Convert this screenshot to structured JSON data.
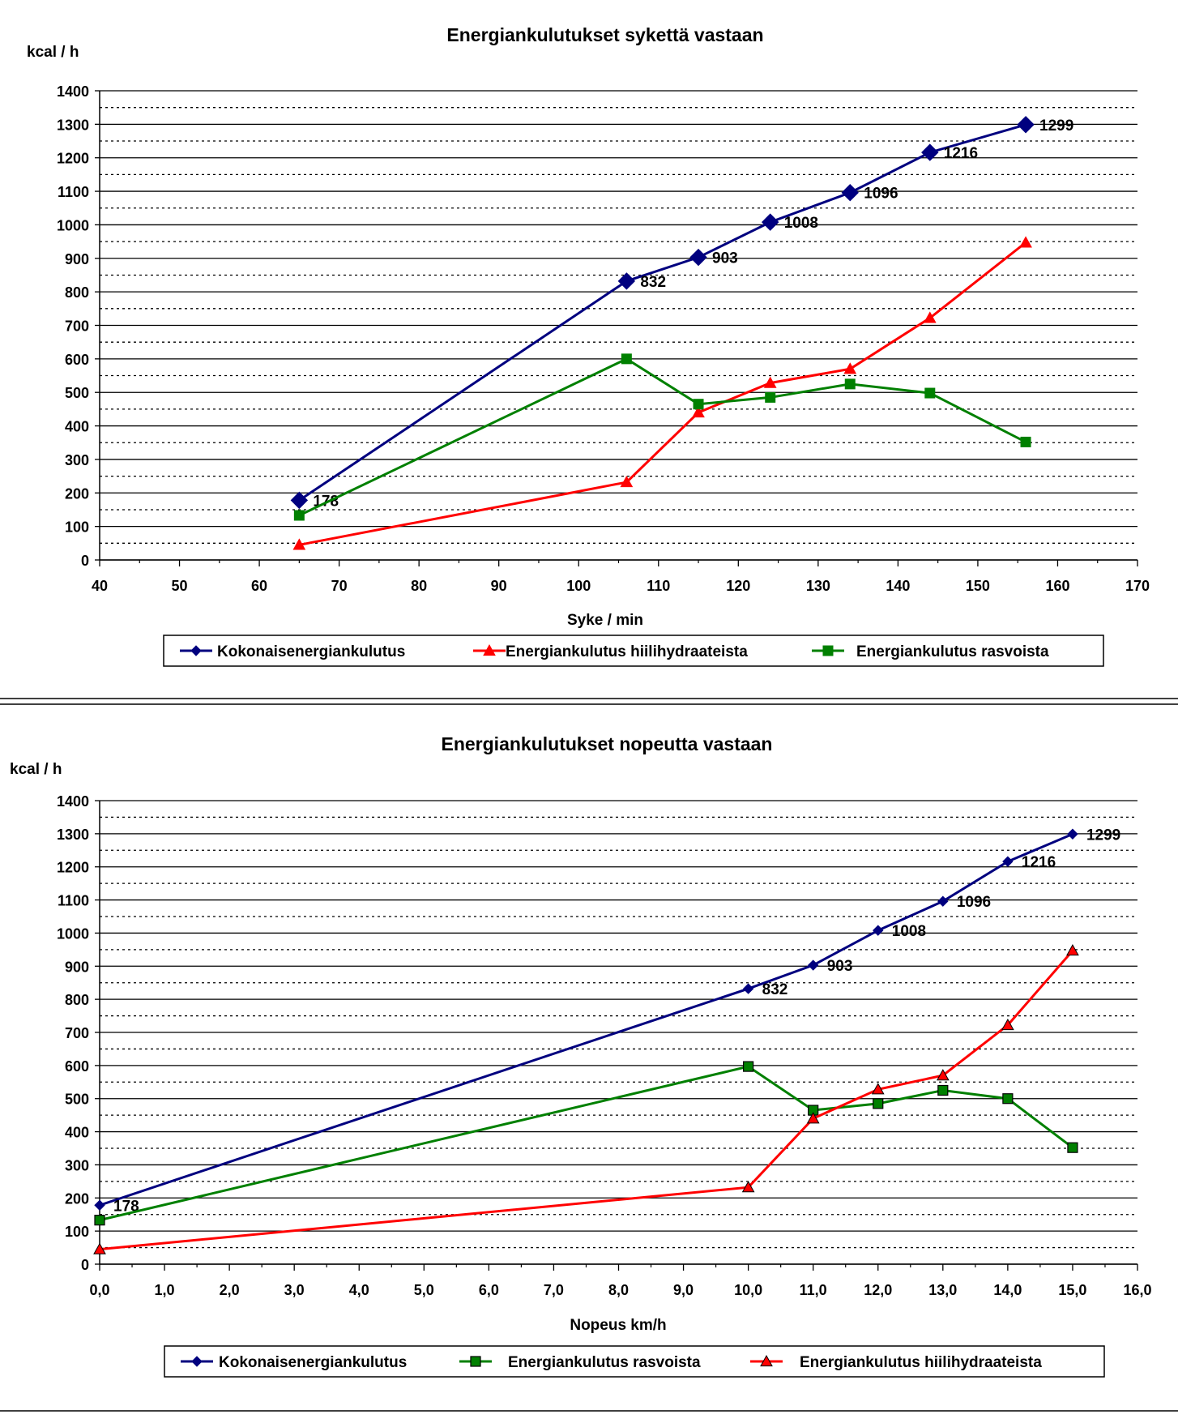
{
  "colors": {
    "total": "#00007f",
    "carb": "#ff0000",
    "fat": "#008000",
    "carb_marker_fill": "#ff0000",
    "fat_marker_fill": "#008000"
  },
  "chart_data": [
    {
      "type": "line",
      "title": "Energiankulutukset sykettä vastaan",
      "ylabel": "kcal / h",
      "xlabel": "Syke / min",
      "xlim": [
        40,
        170
      ],
      "ylim": [
        0,
        1400
      ],
      "x_ticks": [
        "40",
        "50",
        "60",
        "70",
        "80",
        "90",
        "100",
        "110",
        "120",
        "130",
        "140",
        "150",
        "160",
        "170"
      ],
      "y_ticks": [
        "0",
        "100",
        "200",
        "300",
        "400",
        "500",
        "600",
        "700",
        "800",
        "900",
        "1000",
        "1100",
        "1200",
        "1300",
        "1400"
      ],
      "grid": "solid major lines every 100, dotted minor lines every 50",
      "legend": "bottom",
      "x": [
        65,
        106,
        115,
        124,
        134,
        144,
        156
      ],
      "series": [
        {
          "name": "Kokonaisenergiankulutus",
          "key": "total",
          "marker": "diamond-large",
          "values": [
            178,
            832,
            903,
            1008,
            1096,
            1216,
            1299
          ],
          "labels": [
            "178",
            "832",
            "903",
            "1008",
            "1096",
            "1216",
            "1299"
          ]
        },
        {
          "name": "Energiankulutus hiilihydraateista",
          "key": "carb",
          "marker": "triangle",
          "values": [
            45,
            232,
            440,
            528,
            570,
            722,
            947
          ]
        },
        {
          "name": "Energiankulutus rasvoista",
          "key": "fat",
          "marker": "square",
          "values": [
            133,
            600,
            465,
            485,
            525,
            498,
            352
          ]
        }
      ],
      "legend_order": [
        0,
        1,
        2
      ]
    },
    {
      "type": "line",
      "title": "Energiankulutukset nopeutta vastaan",
      "ylabel": "kcal / h",
      "xlabel": "Nopeus km/h",
      "xlim": [
        0,
        16
      ],
      "ylim": [
        0,
        1400
      ],
      "x_ticks": [
        "0,0",
        "1,0",
        "2,0",
        "3,0",
        "4,0",
        "5,0",
        "6,0",
        "7,0",
        "8,0",
        "9,0",
        "10,0",
        "11,0",
        "12,0",
        "13,0",
        "14,0",
        "15,0",
        "16,0"
      ],
      "y_ticks": [
        "0",
        "100",
        "200",
        "300",
        "400",
        "500",
        "600",
        "700",
        "800",
        "900",
        "1000",
        "1100",
        "1200",
        "1300",
        "1400"
      ],
      "grid": "solid major lines every 100, dotted minor lines every 50",
      "legend": "bottom",
      "x": [
        0,
        10,
        11,
        12,
        13,
        14,
        15
      ],
      "series": [
        {
          "name": "Kokonaisenergiankulutus",
          "key": "total",
          "marker": "diamond-small",
          "values": [
            178,
            832,
            903,
            1008,
            1096,
            1216,
            1299
          ],
          "labels": [
            "178",
            "832",
            "903",
            "1008",
            "1096",
            "1216",
            "1299"
          ]
        },
        {
          "name": "Energiankulutus rasvoista",
          "key": "fat",
          "marker": "square-outlined",
          "values": [
            133,
            597,
            465,
            485,
            525,
            500,
            352
          ]
        },
        {
          "name": "Energiankulutus hiilihydraateista",
          "key": "carb",
          "marker": "triangle-outlined",
          "values": [
            45,
            232,
            440,
            528,
            570,
            722,
            947
          ]
        }
      ],
      "legend_order": [
        0,
        1,
        2
      ]
    }
  ]
}
